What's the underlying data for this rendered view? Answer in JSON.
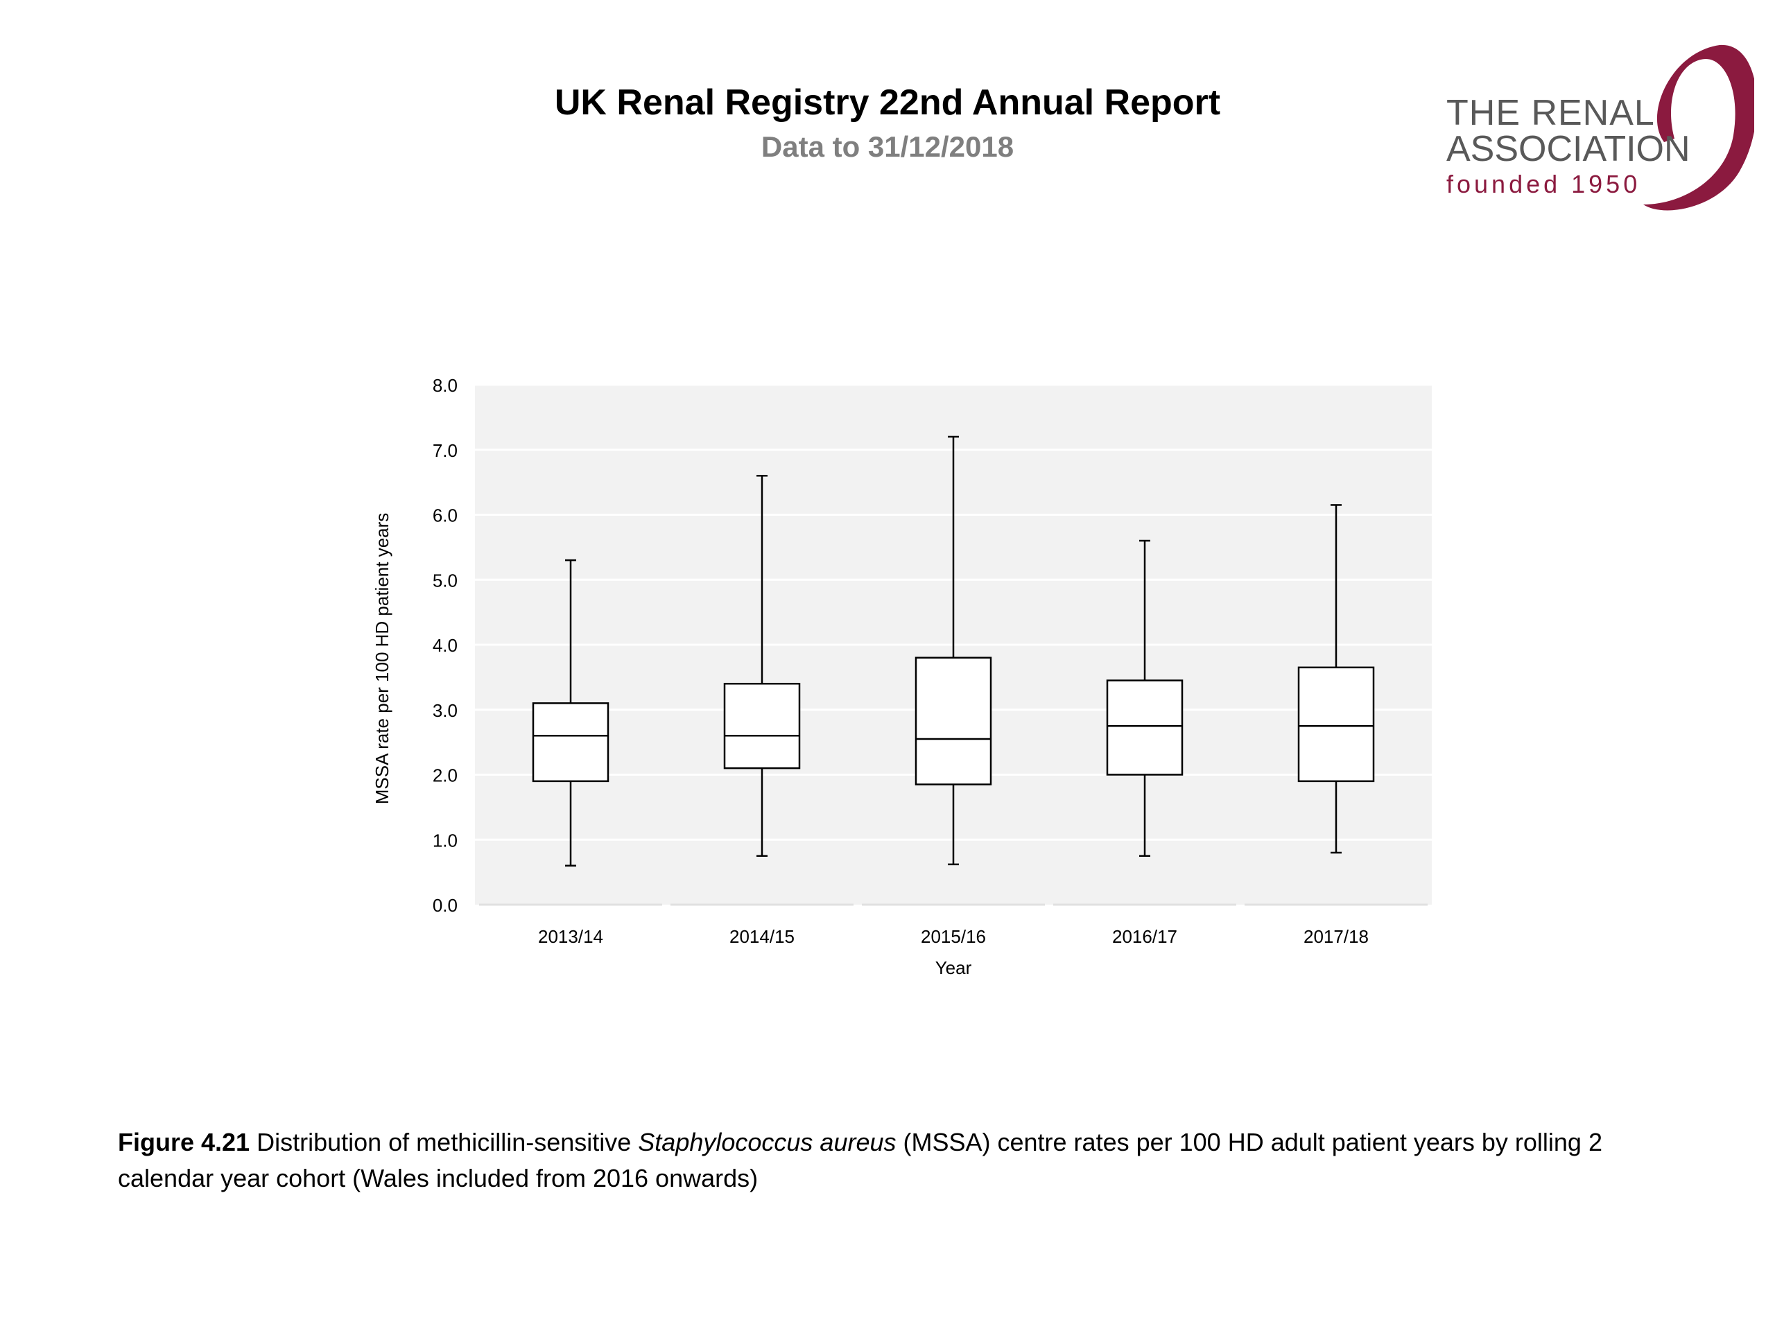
{
  "header": {
    "title": "UK Renal Registry 22nd Annual Report",
    "subtitle": "Data to 31/12/2018"
  },
  "logo": {
    "line1": "THE RENAL",
    "line2": "ASSOCIATION",
    "line3": "founded 1950",
    "accent_color": "#8b1a3f"
  },
  "chart_data": {
    "type": "box",
    "xlabel": "Year",
    "ylabel": "MSSA rate per 100 HD patient years",
    "ylim": [
      0,
      8
    ],
    "yticks": [
      "0.0",
      "1.0",
      "2.0",
      "3.0",
      "4.0",
      "5.0",
      "6.0",
      "7.0",
      "8.0"
    ],
    "grid": true,
    "plot_background": "#f2f2f2",
    "categories": [
      "2013/14",
      "2014/15",
      "2015/16",
      "2016/17",
      "2017/18"
    ],
    "boxes": [
      {
        "category": "2013/14",
        "min": 0.6,
        "q1": 1.9,
        "median": 2.6,
        "q3": 3.1,
        "max": 5.3
      },
      {
        "category": "2014/15",
        "min": 0.75,
        "q1": 2.1,
        "median": 2.6,
        "q3": 3.4,
        "max": 6.6
      },
      {
        "category": "2015/16",
        "min": 0.62,
        "q1": 1.85,
        "median": 2.55,
        "q3": 3.8,
        "max": 7.2
      },
      {
        "category": "2016/17",
        "min": 0.75,
        "q1": 2.0,
        "median": 2.75,
        "q3": 3.45,
        "max": 5.6
      },
      {
        "category": "2017/18",
        "min": 0.8,
        "q1": 1.9,
        "median": 2.75,
        "q3": 3.65,
        "max": 6.15
      }
    ]
  },
  "caption": {
    "label": "Figure 4.21",
    "text_before": " Distribution of methicillin-sensitive ",
    "italic": "Staphylococcus aureus",
    "text_after": " (MSSA) centre rates per 100 HD adult patient years by rolling 2 calendar year cohort (Wales included from 2016 onwards)"
  }
}
